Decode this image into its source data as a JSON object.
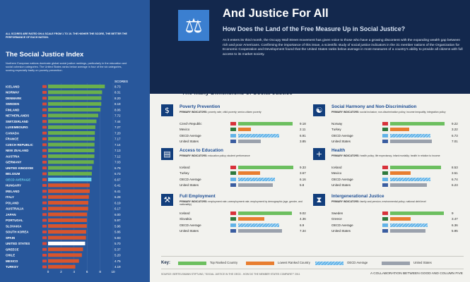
{
  "colors": {
    "top": "#6cbf5f",
    "lowest": "#e87d2f",
    "oecd": "#62b3e8",
    "us": "#9aa1ac",
    "sidebar_bg": "#28579b",
    "hero_bg": "#13284d",
    "green": "#6ab04c",
    "red": "#d9552c",
    "cyan": "#6dd0e8"
  },
  "sidebar": {
    "scale_note": "ALL SCORES ARE RATED ON A SCALE FROM 1 TO 10. THE HIGHER THE SCORE, THE BETTER THE PERFORMANCE OF EACH NATION.",
    "title": "The Social Justice Index",
    "description": "Northern European nations dominate global social justice rankings, particularly in the education and social cohesion categories. The United States ranks below average in four of the six categories, scoring especially badly on poverty prevention.",
    "scores_header": "SCORES"
  },
  "hero": {
    "icon": "scale-icon",
    "title": "And Justice For All",
    "subtitle": "How Does the Land of the Free Measure Up in Social Justice?",
    "paragraph": "As it enters its third month, the Occupy Wall Street movement has given voice to those who have a growing discontent with the expanding wealth gap between rich and poor Americans. Confirming the importance of this issue, a scientific study of social justice indicators in the 31 member nations of the Organization for Economic Cooperation and Development found that the United States ranks below average in most measures of a country's ability to provide all citizens with full access to its market society."
  },
  "dimensions_title": "The Many Dimensions of Social Justice",
  "key": {
    "label": "Key:",
    "items": [
      "Top Ranked Country",
      "Lowest Ranked Country",
      "OECD Average",
      "United States"
    ]
  },
  "footer": {
    "source": "SOURCE:  BERTELSMANN STIFTUNG, \"SOCIAL JUSTICE IN THE OECD - HOW DO THE MEMBER STATES COMPARE?\" 2011",
    "collab": "A COLLABORATION BETWEEN GOOD AND COLUMN FIVE"
  },
  "chart_data": [
    {
      "type": "bar",
      "orientation": "horizontal",
      "title": "The Social Justice Index",
      "xlim": [
        0,
        10
      ],
      "xticks": [
        0,
        2,
        4,
        6,
        8,
        10
      ],
      "categories": [
        "ICELAND",
        "NORWAY",
        "DENMARK",
        "SWEDEN",
        "FINLAND",
        "NETHERLANDS",
        "SWITZERLAND",
        "LUXEMBOURG",
        "CANADA",
        "FRANCE",
        "CZECH REPUBLIC",
        "NEW ZEALAND",
        "AUSTRIA",
        "GERMANY",
        "UNITED KINGDOM",
        "BELGIUM",
        "OECD AVERAGE",
        "HUNGARY",
        "IRELAND",
        "ITALY",
        "POLAND",
        "AUSTRALIA",
        "JAPAN",
        "PORTUGAL",
        "SLOVAKIA",
        "SOUTH KOREA",
        "SPAIN",
        "UNITED STATES",
        "GREECE",
        "CHILE",
        "MEXICO",
        "TURKEY"
      ],
      "values": [
        8.73,
        8.31,
        8.2,
        8.18,
        8.06,
        7.72,
        7.44,
        7.27,
        7.2,
        7.17,
        7.14,
        7.13,
        7.12,
        7.03,
        6.79,
        6.73,
        6.67,
        6.41,
        6.41,
        6.28,
        6.19,
        6.17,
        6.0,
        5.97,
        5.96,
        5.86,
        5.83,
        5.7,
        5.37,
        5.2,
        4.75,
        4.19
      ]
    },
    {
      "type": "bar",
      "title": "Poverty Prevention",
      "indicators": "poverty rate; child poverty; senior-citizen poverty",
      "categories": [
        "Czech Republic",
        "Mexico",
        "OECD Average",
        "United States"
      ],
      "values": [
        9.18,
        2.11,
        6.91,
        3.85
      ]
    },
    {
      "type": "bar",
      "title": "Social Harmony and Non-Discrimination",
      "indicators": "social inclusion; non-discrimination policy; income inequality; integration policy",
      "categories": [
        "Norway",
        "Turkey",
        "OECD Average",
        "United States"
      ],
      "values": [
        9.22,
        3.22,
        6.73,
        7.01
      ]
    },
    {
      "type": "bar",
      "title": "Access to Education",
      "indicators": "education policy; student performance",
      "categories": [
        "Iceland",
        "Turkey",
        "OECD Average",
        "United States"
      ],
      "values": [
        9.33,
        3.67,
        6.16,
        5.8
      ]
    },
    {
      "type": "bar",
      "title": "Health",
      "indicators": "health policy; life expectancy; infant mortality; health in relation to income",
      "categories": [
        "Iceland",
        "Mexico",
        "OECD Average",
        "United States"
      ],
      "values": [
        8.53,
        3.51,
        6.74,
        6.23
      ]
    },
    {
      "type": "bar",
      "title": "Full Employment",
      "indicators": "employment rate; unemployment rate; employment by demographic (age, gender, and nationality)",
      "categories": [
        "Iceland",
        "Slovakia",
        "OECD Average",
        "United States"
      ],
      "values": [
        9.02,
        4.36,
        6.9,
        7.34
      ]
    },
    {
      "type": "bar",
      "title": "Intergenerational Justice",
      "indicators": "family and pension; environmental policy; national debt level",
      "categories": [
        "Sweden",
        "Greece",
        "OECD Average",
        "United States"
      ],
      "values": [
        9,
        3.47,
        6.36,
        5.95
      ]
    }
  ],
  "card_meta": [
    {
      "icon": "wallet-icon",
      "glyph": "$",
      "indicators_label": "PRIMARY INDICATORS:"
    },
    {
      "icon": "handshake-icon",
      "glyph": "☯",
      "indicators_label": "PRIMARY INDICATORS:"
    },
    {
      "icon": "book-icon",
      "glyph": "▤",
      "indicators_label": "PRIMARY INDICATORS:"
    },
    {
      "icon": "medical-kit-icon",
      "glyph": "+",
      "indicators_label": "PRIMARY INDICATORS:"
    },
    {
      "icon": "tools-icon",
      "glyph": "⚒",
      "indicators_label": "PRIMARY INDICATORS:"
    },
    {
      "icon": "hourglass-icon",
      "glyph": "⧗",
      "indicators_label": "PRIMARY INDICATORS:"
    }
  ]
}
